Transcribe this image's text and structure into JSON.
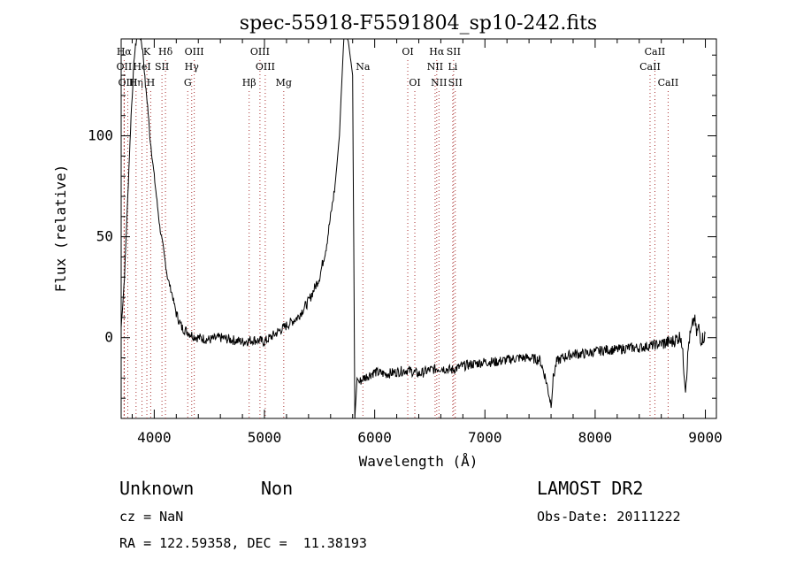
{
  "chart_data": {
    "type": "line",
    "title": "spec-55918-F5591804_sp10-242.fits",
    "xlabel": "Wavelength (Å)",
    "ylabel": "Flux (relative)",
    "xlim": [
      3700,
      9100
    ],
    "ylim": [
      -40,
      148
    ],
    "x_ticks": [
      4000,
      5000,
      6000,
      7000,
      8000,
      9000
    ],
    "y_ticks": [
      0,
      50,
      100
    ],
    "grid": false,
    "series": [
      {
        "x": [
          3700,
          3730,
          3760,
          3790,
          3820,
          3840,
          3860,
          3880,
          3900,
          3920,
          3940,
          3960,
          3980,
          4000,
          4020,
          4050,
          4080,
          4120,
          4160,
          4200,
          4250,
          4300,
          4350,
          4400,
          4500,
          4600,
          4700,
          4800,
          4900,
          5000,
          5100,
          5200,
          5300,
          5400,
          5500,
          5560,
          5600,
          5640,
          5680,
          5700,
          5720,
          5740,
          5760,
          5800,
          5820,
          5840,
          5860,
          5900,
          6000,
          6100,
          6200,
          6300,
          6400,
          6500,
          6600,
          6700,
          6800,
          6900,
          7000,
          7100,
          7200,
          7300,
          7400,
          7500,
          7550,
          7600,
          7620,
          7650,
          7700,
          7800,
          7900,
          8000,
          8100,
          8200,
          8300,
          8400,
          8500,
          8600,
          8700,
          8780,
          8800,
          8820,
          8850,
          8900,
          8920,
          8940,
          8960,
          9000
        ],
        "y": [
          5,
          30,
          70,
          110,
          140,
          148,
          150,
          148,
          140,
          125,
          115,
          100,
          90,
          80,
          70,
          55,
          45,
          30,
          22,
          12,
          5,
          3,
          1,
          0,
          -1,
          0,
          -1,
          -2,
          -1,
          -2,
          2,
          6,
          10,
          18,
          30,
          45,
          60,
          75,
          100,
          125,
          148,
          150,
          147,
          130,
          -40,
          -20,
          -22,
          -20,
          -17,
          -18,
          -17,
          -16,
          -18,
          -16,
          -15,
          -16,
          -14,
          -13,
          -12,
          -12,
          -11,
          -10,
          -10,
          -11,
          -20,
          -33,
          -20,
          -12,
          -10,
          -8,
          -8,
          -7,
          -6,
          -6,
          -5,
          -5,
          -4,
          -3,
          -2,
          1,
          -12,
          -25,
          -2,
          10,
          2,
          5,
          -1,
          1
        ]
      }
    ],
    "lines": [
      {
        "label": "Hα",
        "x": 3727,
        "row": 1
      },
      {
        "label": "OII",
        "x": 3727,
        "row": 2
      },
      {
        "label": "OIII",
        "x": 3760,
        "row": 3
      },
      {
        "label": "Hη",
        "x": 3835,
        "row": 3
      },
      {
        "label": "HeI",
        "x": 3889,
        "row": 2
      },
      {
        "label": "K",
        "x": 3933,
        "row": 1
      },
      {
        "label": "SII",
        "x": 4070,
        "row": 2
      },
      {
        "label": "H",
        "x": 3968,
        "row": 3
      },
      {
        "label": "Hδ",
        "x": 4102,
        "row": 1
      },
      {
        "label": "OIII",
        "x": 4363,
        "row": 1
      },
      {
        "label": "Hγ",
        "x": 4340,
        "row": 2
      },
      {
        "label": "G",
        "x": 4304,
        "row": 3
      },
      {
        "label": "Hβ",
        "x": 4861,
        "row": 3
      },
      {
        "label": "OIII",
        "x": 4959,
        "row": 1
      },
      {
        "label": "OIII",
        "x": 5007,
        "row": 2
      },
      {
        "label": "Mg",
        "x": 5175,
        "row": 3
      },
      {
        "label": "Na",
        "x": 5893,
        "row": 2
      },
      {
        "label": "OI",
        "x": 6300,
        "row": 1
      },
      {
        "label": "OI",
        "x": 6364,
        "row": 3
      },
      {
        "label": "Hα",
        "x": 6563,
        "row": 1
      },
      {
        "label": "NII",
        "x": 6548,
        "row": 2
      },
      {
        "label": "NII",
        "x": 6583,
        "row": 3
      },
      {
        "label": "SII",
        "x": 6716,
        "row": 1
      },
      {
        "label": "Li",
        "x": 6708,
        "row": 2
      },
      {
        "label": "SII",
        "x": 6731,
        "row": 3
      },
      {
        "label": "CaII",
        "x": 8542,
        "row": 1
      },
      {
        "label": "CaII",
        "x": 8498,
        "row": 2
      },
      {
        "label": "CaII",
        "x": 8662,
        "row": 3
      }
    ]
  },
  "info": {
    "class": "Unknown",
    "subclass": "Non",
    "survey": "LAMOST DR2",
    "cz": "cz = NaN",
    "obs_date": "Obs-Date: 20111222",
    "coords": "RA = 122.59358, DEC =  11.38193"
  }
}
